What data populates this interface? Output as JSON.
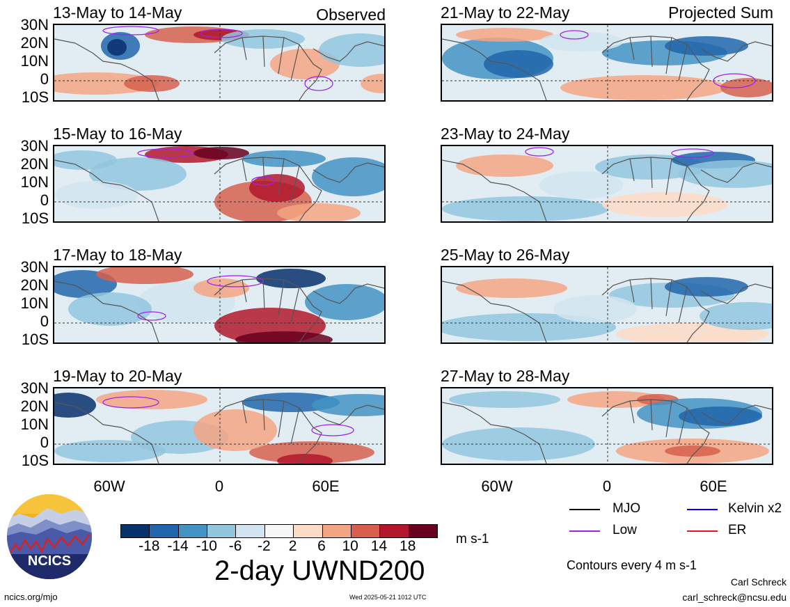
{
  "panels": [
    {
      "id": "obs1",
      "title": "13-May to 14-May",
      "label": "Observed"
    },
    {
      "id": "obs2",
      "title": "15-May to 16-May",
      "label": ""
    },
    {
      "id": "obs3",
      "title": "17-May to 18-May",
      "label": ""
    },
    {
      "id": "obs4",
      "title": "19-May to 20-May",
      "label": ""
    },
    {
      "id": "proj1",
      "title": "21-May to 22-May",
      "label": "Projected Sum"
    },
    {
      "id": "proj2",
      "title": "23-May to 24-May",
      "label": ""
    },
    {
      "id": "proj3",
      "title": "25-May to 26-May",
      "label": ""
    },
    {
      "id": "proj4",
      "title": "27-May to 28-May",
      "label": ""
    }
  ],
  "lat_labels": [
    "30N",
    "20N",
    "10N",
    "0",
    "10S"
  ],
  "lon_labels": [
    "60W",
    "0",
    "60E"
  ],
  "colorbar": {
    "ticks": [
      "-18",
      "-14",
      "-10",
      "-6",
      "-2",
      "2",
      "6",
      "10",
      "14",
      "18"
    ],
    "colors": [
      "#08306b",
      "#2166ac",
      "#4393c3",
      "#92c5de",
      "#d1e5f0",
      "#f7f7f7",
      "#fddbc7",
      "#f4a582",
      "#d6604d",
      "#b2182b",
      "#67001f"
    ],
    "unit": "m s-1"
  },
  "title": "2-day UWND200",
  "legend": [
    {
      "label": "MJO",
      "color": "#000000"
    },
    {
      "label": "Kelvin x2",
      "color": "#0000ff"
    },
    {
      "label": "Low",
      "color": "#a020f0"
    },
    {
      "label": "ER",
      "color": "#e8141c"
    }
  ],
  "contours_note": "Contours every 4 m s-1",
  "footer": {
    "url": "ncics.org/mjo",
    "timestamp": "Wed 2025-05-21 1012 UTC",
    "author": "Carl Schreck",
    "email": "carl_schreck@ncsu.edu"
  },
  "logo_text": "NCICS"
}
